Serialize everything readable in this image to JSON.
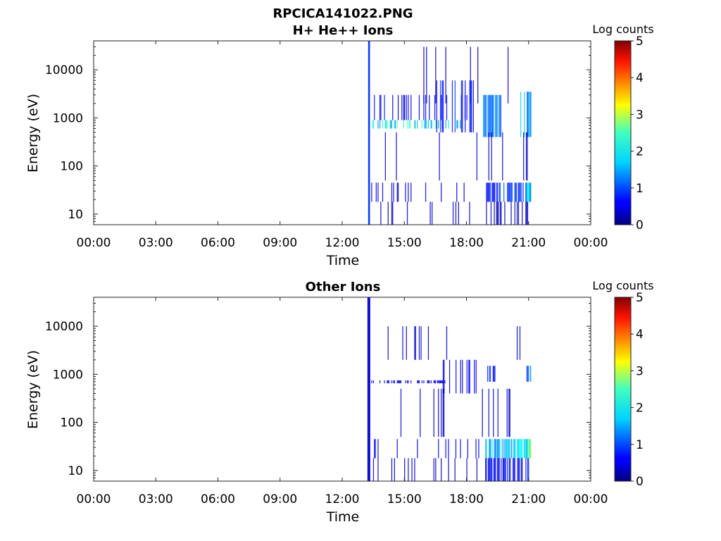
{
  "figure": {
    "title": "RPCICA141022.PNG"
  },
  "chart_data": [
    {
      "type": "heatmap",
      "title": "H+ He++ Ions",
      "xlabel": "Time",
      "ylabel": "Energy (eV)",
      "yscale": "log",
      "ylim": [
        6,
        40000
      ],
      "xlim_hours": [
        0,
        24
      ],
      "xticks": [
        "00:00",
        "03:00",
        "06:00",
        "09:00",
        "12:00",
        "15:00",
        "18:00",
        "21:00",
        "00:00"
      ],
      "yticks": [
        {
          "value": 10000,
          "label": "10000"
        },
        {
          "value": 1000,
          "label": "1000"
        },
        {
          "value": 100,
          "label": "100"
        },
        {
          "value": 10,
          "label": "10"
        }
      ],
      "colorbar": {
        "label": "Log counts",
        "range": [
          0,
          5
        ],
        "ticks": [
          "0",
          "1",
          "2",
          "3",
          "4",
          "5"
        ],
        "colormap": "jet"
      },
      "data_regions": [
        {
          "t_start": 13.25,
          "t_end": 13.32,
          "e_min": 6,
          "e_max": 40000,
          "level": 0.9,
          "density": 1
        },
        {
          "t_start": 13.4,
          "t_end": 21.0,
          "e_min": 2000,
          "e_max": 30000,
          "level": 0.3,
          "density": 0.05
        },
        {
          "t_start": 13.4,
          "t_end": 18.0,
          "e_min": 600,
          "e_max": 900,
          "level": 1.8,
          "density": 0.45
        },
        {
          "t_start": 13.4,
          "t_end": 18.0,
          "e_min": 900,
          "e_max": 3000,
          "level": 0.6,
          "density": 0.18
        },
        {
          "t_start": 16.5,
          "t_end": 18.5,
          "e_min": 500,
          "e_max": 6000,
          "level": 0.7,
          "density": 0.25
        },
        {
          "t_start": 18.8,
          "t_end": 19.7,
          "e_min": 400,
          "e_max": 3000,
          "level": 1.1,
          "density": 0.65
        },
        {
          "t_start": 20.6,
          "t_end": 21.1,
          "e_min": 400,
          "e_max": 3500,
          "level": 1.3,
          "density": 0.55
        },
        {
          "t_start": 13.4,
          "t_end": 21.0,
          "e_min": 50,
          "e_max": 500,
          "level": 0.3,
          "density": 0.06
        },
        {
          "t_start": 13.4,
          "t_end": 18.0,
          "e_min": 18,
          "e_max": 45,
          "level": 0.4,
          "density": 0.12
        },
        {
          "t_start": 18.9,
          "t_end": 20.9,
          "e_min": 18,
          "e_max": 45,
          "level": 0.8,
          "density": 0.7
        },
        {
          "t_start": 20.9,
          "t_end": 21.1,
          "e_min": 18,
          "e_max": 45,
          "level": 1.9,
          "density": 1
        },
        {
          "t_start": 13.4,
          "t_end": 21.0,
          "e_min": 6,
          "e_max": 18,
          "level": 0.3,
          "density": 0.08
        },
        {
          "t_start": 18.9,
          "t_end": 21.0,
          "e_min": 6,
          "e_max": 18,
          "level": 0.3,
          "density": 0.25
        }
      ]
    },
    {
      "type": "heatmap",
      "title": "Other Ions",
      "xlabel": "Time",
      "ylabel": "Energy (eV)",
      "yscale": "log",
      "ylim": [
        6,
        40000
      ],
      "xlim_hours": [
        0,
        24
      ],
      "xticks": [
        "00:00",
        "03:00",
        "06:00",
        "09:00",
        "12:00",
        "15:00",
        "18:00",
        "21:00",
        "00:00"
      ],
      "yticks": [
        {
          "value": 10000,
          "label": "10000"
        },
        {
          "value": 1000,
          "label": "1000"
        },
        {
          "value": 100,
          "label": "100"
        },
        {
          "value": 10,
          "label": "10"
        }
      ],
      "colorbar": {
        "label": "Log counts",
        "range": [
          0,
          5
        ],
        "ticks": [
          "0",
          "1",
          "2",
          "3",
          "4",
          "5"
        ],
        "colormap": "jet"
      },
      "data_regions": [
        {
          "t_start": 13.22,
          "t_end": 13.32,
          "e_min": 6,
          "e_max": 40000,
          "level": 0.4,
          "density": 1
        },
        {
          "t_start": 13.4,
          "t_end": 21.0,
          "e_min": 2000,
          "e_max": 10000,
          "level": 0.3,
          "density": 0.04
        },
        {
          "t_start": 13.4,
          "t_end": 17.0,
          "e_min": 650,
          "e_max": 750,
          "level": 0.5,
          "density": 0.5
        },
        {
          "t_start": 16.5,
          "t_end": 18.5,
          "e_min": 400,
          "e_max": 2000,
          "level": 0.5,
          "density": 0.2
        },
        {
          "t_start": 19.0,
          "t_end": 19.4,
          "e_min": 700,
          "e_max": 1500,
          "level": 0.9,
          "density": 0.6
        },
        {
          "t_start": 20.9,
          "t_end": 21.1,
          "e_min": 700,
          "e_max": 1500,
          "level": 1.0,
          "density": 0.7
        },
        {
          "t_start": 13.4,
          "t_end": 21.0,
          "e_min": 50,
          "e_max": 500,
          "level": 0.3,
          "density": 0.06
        },
        {
          "t_start": 13.4,
          "t_end": 18.8,
          "e_min": 18,
          "e_max": 45,
          "level": 0.5,
          "density": 0.12
        },
        {
          "t_start": 18.9,
          "t_end": 20.9,
          "e_min": 18,
          "e_max": 45,
          "level": 1.6,
          "density": 0.85
        },
        {
          "t_start": 20.9,
          "t_end": 21.1,
          "e_min": 18,
          "e_max": 45,
          "level": 2.2,
          "density": 1
        },
        {
          "t_start": 13.4,
          "t_end": 18.8,
          "e_min": 6,
          "e_max": 18,
          "level": 0.3,
          "density": 0.1
        },
        {
          "t_start": 18.9,
          "t_end": 21.0,
          "e_min": 6,
          "e_max": 18,
          "level": 0.6,
          "density": 0.7
        }
      ]
    }
  ]
}
